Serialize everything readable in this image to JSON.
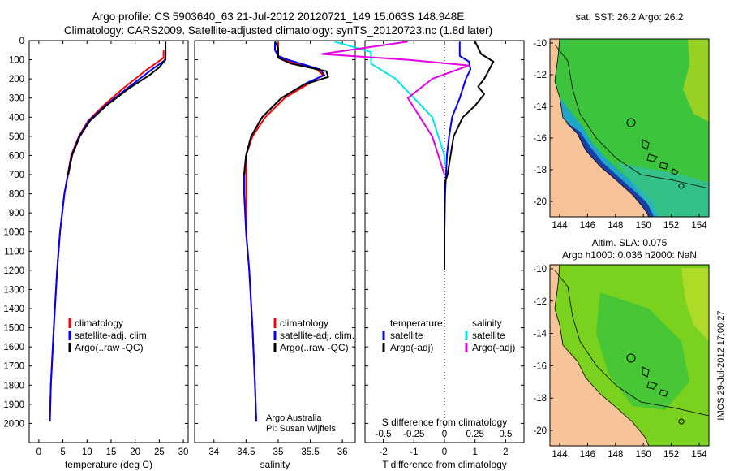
{
  "header": {
    "line1": "Argo profile: CS 5903640_63 21-Jul-2012 20120721_149 15.063S 148.948E",
    "line2": "Climatology: CARS2009. Satellite-adjusted climatology: synTS_20120723.nc (1.8d later)"
  },
  "colors": {
    "climatology": "#ff0000",
    "satellite": "#0000ff",
    "argo": "#000000",
    "sal_satellite": "#00e5e5",
    "sal_argo": "#e600e6",
    "land": "#f7c49a"
  },
  "depth_axis": {
    "ticks": [
      0,
      100,
      200,
      300,
      400,
      500,
      600,
      700,
      800,
      900,
      1000,
      1100,
      1200,
      1300,
      1400,
      1500,
      1600,
      1700,
      1800,
      1900,
      2000
    ],
    "range": [
      0,
      2100
    ]
  },
  "chart_data": [
    {
      "type": "line",
      "id": "temperature",
      "xlabel": "temperature (deg C)",
      "xlim": [
        -2,
        31
      ],
      "xticks": [
        0,
        5,
        10,
        15,
        20,
        25,
        30
      ],
      "legend": [
        "climatology",
        "satellite-adj. clim.",
        "Argo(..raw -QC)"
      ],
      "series": [
        {
          "name": "climatology",
          "depth": [
            50,
            90,
            150,
            250,
            340,
            420,
            500,
            600,
            800,
            1000,
            1200,
            1500,
            1800,
            1990
          ],
          "values": [
            25.9,
            25.9,
            22.5,
            17.5,
            13.4,
            10.2,
            8.3,
            6.7,
            5.3,
            4.4,
            3.8,
            3.1,
            2.5,
            2.3
          ]
        },
        {
          "name": "satellite-adj. clim.",
          "depth": [
            50,
            100,
            150,
            250,
            340,
            420,
            500,
            600,
            800,
            1000,
            1200,
            1500,
            1800,
            1990
          ],
          "values": [
            26.3,
            26.3,
            23.5,
            18.3,
            13.8,
            10.4,
            8.4,
            6.8,
            5.3,
            4.4,
            3.8,
            3.1,
            2.5,
            2.3
          ]
        },
        {
          "name": "Argo(..raw -QC)",
          "depth": [
            5,
            40,
            80,
            100,
            140,
            180,
            250,
            340,
            420,
            500,
            600,
            700
          ],
          "values": [
            26.3,
            26.3,
            26.3,
            26.2,
            25.0,
            23.0,
            18.7,
            14.0,
            10.6,
            8.5,
            6.9,
            6.1
          ]
        }
      ]
    },
    {
      "type": "line",
      "id": "salinity",
      "xlabel": "salinity",
      "xlim": [
        33.7,
        36.2
      ],
      "xticks": [
        34,
        34.5,
        35,
        35.5,
        36
      ],
      "legend": [
        "climatology",
        "satellite-adj. clim.",
        "Argo(..raw -QC)"
      ],
      "credit": [
        "Argo Australia",
        "PI: Susan Wijffels"
      ],
      "series": [
        {
          "name": "climatology",
          "depth": [
            10,
            50,
            80,
            100,
            150,
            180,
            220,
            300,
            400,
            500,
            600,
            700,
            800,
            1000,
            1200,
            1500,
            1800,
            1990
          ],
          "values": [
            35.0,
            35.0,
            35.0,
            35.1,
            35.6,
            35.7,
            35.5,
            35.1,
            34.8,
            34.6,
            34.5,
            34.5,
            34.5,
            34.5,
            34.55,
            34.6,
            34.64,
            34.66
          ]
        },
        {
          "name": "satellite-adj. clim.",
          "depth": [
            10,
            50,
            80,
            100,
            150,
            180,
            220,
            300,
            400,
            500,
            600,
            700,
            800,
            1000,
            1200,
            1500,
            1800,
            1990
          ],
          "values": [
            34.95,
            34.95,
            35.0,
            35.15,
            35.65,
            35.72,
            35.45,
            35.05,
            34.75,
            34.58,
            34.5,
            34.47,
            34.47,
            34.5,
            34.55,
            34.6,
            34.64,
            34.66
          ]
        },
        {
          "name": "Argo(..raw -QC)",
          "depth": [
            5,
            40,
            90,
            120,
            160,
            190,
            230,
            300,
            400,
            500,
            600,
            700
          ],
          "values": [
            34.95,
            35.0,
            35.0,
            35.2,
            35.75,
            35.78,
            35.4,
            35.05,
            34.75,
            34.58,
            34.5,
            34.47
          ]
        }
      ]
    },
    {
      "type": "line",
      "id": "difference",
      "xlabel": "T difference from climatology",
      "xlabel2": "S difference from climatology",
      "xlim": [
        -2.6,
        2.6
      ],
      "xticks": [
        -2,
        -1,
        0,
        1,
        2
      ],
      "sticks": [
        "-0.5",
        "-0.25",
        "0",
        "0.25",
        "0.5"
      ],
      "legend_title_left": "temperature",
      "legend_title_right": "salinity",
      "legend_left": [
        "satellite",
        "Argo(-adj)"
      ],
      "legend_right": [
        "satellite",
        "Argo(-adj)"
      ],
      "series": [
        {
          "name": "temperature satellite",
          "depth": [
            5,
            80,
            110,
            150,
            200,
            300,
            400,
            500,
            600,
            700,
            800,
            1000,
            1200
          ],
          "values": [
            0.5,
            0.5,
            0.8,
            0.85,
            0.7,
            0.5,
            0.25,
            0.15,
            0.08,
            0.05,
            0.02,
            0.0,
            0.0
          ]
        },
        {
          "name": "temperature Argo(-adj)",
          "depth": [
            5,
            70,
            110,
            140,
            170,
            200,
            240,
            280,
            340,
            400,
            500,
            600,
            700,
            750,
            1200
          ],
          "values": [
            1.0,
            1.2,
            1.6,
            1.5,
            1.4,
            1.3,
            1.1,
            1.3,
            1.0,
            0.6,
            0.3,
            0.2,
            0.1,
            0.0,
            0.0
          ]
        },
        {
          "name": "salinity satellite",
          "depth": [
            5,
            60,
            120,
            200,
            300,
            400,
            500,
            600,
            650
          ],
          "values": [
            -0.9,
            -0.6,
            -0.6,
            -0.4,
            -0.25,
            -0.1,
            -0.05,
            0.0,
            0.0
          ]
        },
        {
          "name": "salinity Argo(-adj)",
          "depth": [
            5,
            70,
            100,
            130,
            200,
            300,
            400,
            500,
            600,
            700
          ],
          "values": [
            -0.3,
            -1.0,
            -0.3,
            0.2,
            -0.1,
            -0.3,
            -0.2,
            -0.1,
            -0.05,
            0.0
          ]
        }
      ]
    }
  ],
  "maps": {
    "sst_title": "sat. SST: 26.2 Argo: 26.2",
    "sla_title1": "Altim. SLA: 0.075",
    "sla_title2": "Argo h1000: 0.036 h2000: NaN",
    "lon_ticks": [
      "144",
      "146",
      "148",
      "150",
      "152",
      "154"
    ],
    "lat_ticks": [
      "-10",
      "-12",
      "-14",
      "-16",
      "-18",
      "-20"
    ]
  },
  "footer": "IMOS 29-Jul-2012 17:00:27"
}
